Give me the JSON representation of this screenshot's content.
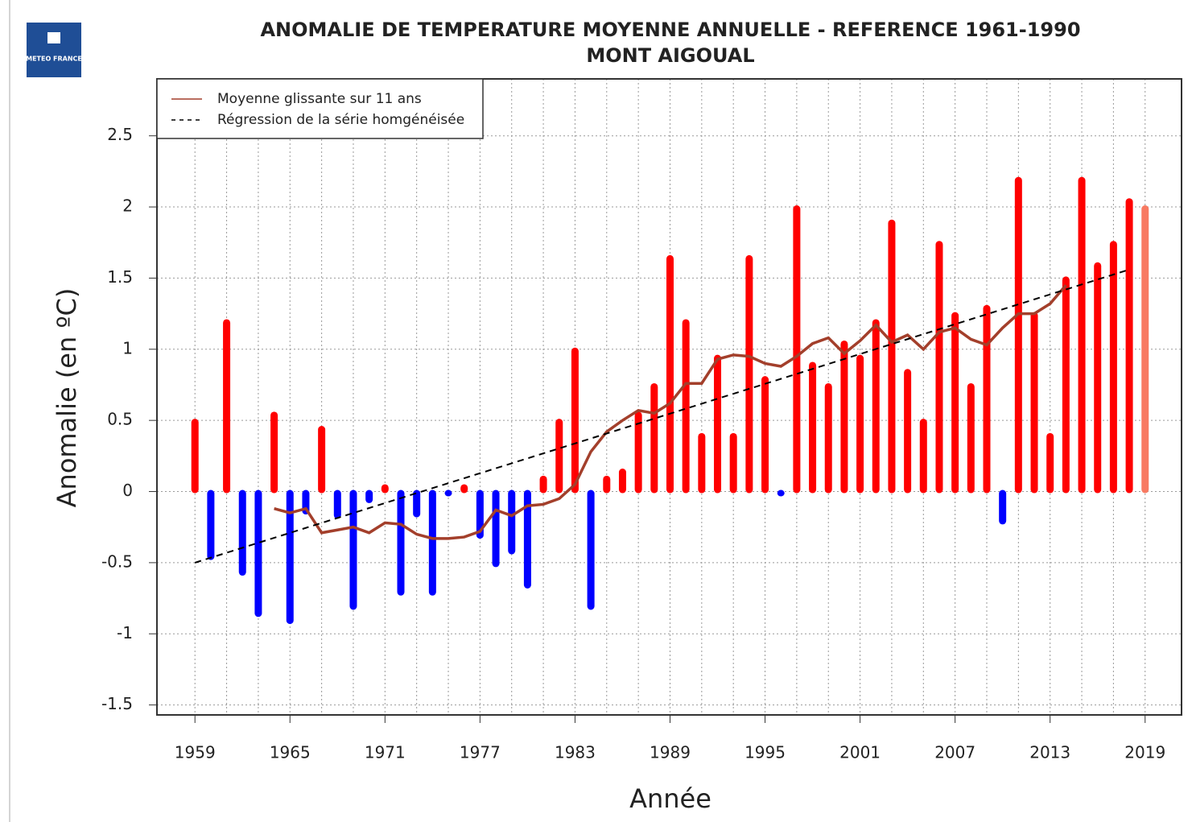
{
  "logo": "METEO FRANCE",
  "chart_data": {
    "type": "bar",
    "title": "ANOMALIE DE TEMPERATURE MOYENNE ANNUELLE - REFERENCE 1961-1990",
    "subtitle": "MONT AIGOUAL",
    "x_label": "Année",
    "y_label": "Anomalie (en ºC)",
    "x": [
      1959,
      1960,
      1961,
      1962,
      1963,
      1964,
      1965,
      1966,
      1967,
      1968,
      1969,
      1970,
      1971,
      1972,
      1973,
      1974,
      1975,
      1976,
      1977,
      1978,
      1979,
      1980,
      1981,
      1982,
      1983,
      1984,
      1985,
      1986,
      1987,
      1988,
      1989,
      1990,
      1991,
      1992,
      1993,
      1994,
      1995,
      1996,
      1997,
      1998,
      1999,
      2000,
      2001,
      2002,
      2003,
      2004,
      2005,
      2006,
      2007,
      2008,
      2009,
      2010,
      2011,
      2012,
      2013,
      2014,
      2015,
      2016,
      2017,
      2018,
      2019
    ],
    "values": [
      0.5,
      -0.47,
      1.2,
      -0.58,
      -0.87,
      0.55,
      -0.92,
      -0.15,
      0.45,
      -0.18,
      -0.82,
      -0.07,
      0.04,
      -0.72,
      -0.17,
      -0.72,
      -0.02,
      0.04,
      -0.32,
      -0.52,
      -0.43,
      -0.67,
      0.1,
      0.5,
      1.0,
      -0.82,
      0.1,
      0.15,
      0.55,
      0.75,
      1.65,
      1.2,
      0.4,
      0.95,
      0.4,
      1.65,
      0.8,
      -0.02,
      2.0,
      0.9,
      0.75,
      1.05,
      0.95,
      1.2,
      1.9,
      0.85,
      0.5,
      1.75,
      1.25,
      0.75,
      1.3,
      -0.22,
      2.2,
      1.25,
      0.4,
      1.5,
      2.2,
      1.6,
      1.75,
      2.05,
      2.0
    ],
    "positive_color": "#ff0000",
    "negative_color": "#0000ff",
    "last_color": "#f87a62",
    "series": [
      {
        "name": "Moyenne glissante sur 11 ans",
        "color": "#a33f2b",
        "values": [
          null,
          null,
          null,
          null,
          null,
          -0.12,
          -0.15,
          -0.12,
          -0.29,
          -0.27,
          -0.25,
          -0.29,
          -0.22,
          -0.23,
          -0.3,
          -0.33,
          -0.33,
          -0.32,
          -0.28,
          -0.13,
          -0.17,
          -0.1,
          -0.09,
          -0.05,
          0.05,
          0.28,
          0.42,
          0.5,
          0.57,
          0.55,
          0.62,
          0.76,
          0.76,
          0.93,
          0.96,
          0.95,
          0.9,
          0.88,
          0.95,
          1.04,
          1.08,
          0.97,
          1.06,
          1.17,
          1.05,
          1.1,
          1.0,
          1.12,
          1.15,
          1.07,
          1.03,
          1.15,
          1.25,
          1.25,
          1.32,
          1.45,
          null,
          null,
          null,
          null,
          null
        ]
      },
      {
        "name": "Régression de la série homgénéisée",
        "color": "#000000",
        "dashed": true,
        "x": [
          1959,
          2018
        ],
        "values": [
          -0.5,
          1.56
        ]
      }
    ],
    "xlim": [
      1956.6,
      2021.3
    ],
    "ylim": [
      -1.57,
      2.9
    ],
    "xticks": [
      1959,
      1965,
      1971,
      1977,
      1983,
      1989,
      1995,
      2001,
      2007,
      2013,
      2019
    ],
    "yticks": [
      -1.5,
      -1,
      -0.5,
      0,
      0.5,
      1,
      1.5,
      2,
      2.5
    ],
    "grid": true,
    "legend": "top-left"
  }
}
